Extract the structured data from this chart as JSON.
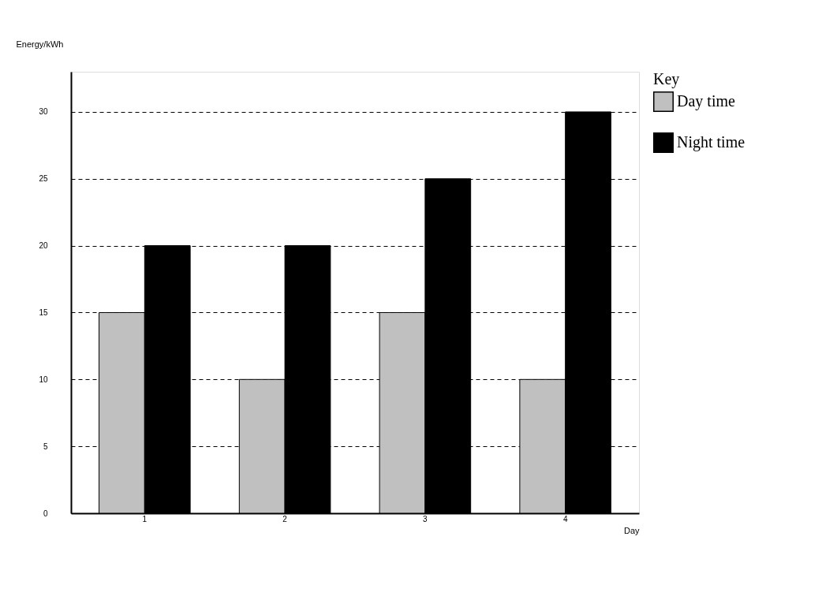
{
  "chart_data": {
    "type": "bar",
    "xlabel": "Day",
    "ylabel": "Energy/kWh",
    "legend_title": "Key",
    "categories": [
      "1",
      "2",
      "3",
      "4"
    ],
    "series": [
      {
        "name": "Day time",
        "color": "#c0c0c0",
        "values": [
          15,
          10,
          15,
          10
        ]
      },
      {
        "name": "Night time",
        "color": "#000000",
        "values": [
          20,
          20,
          25,
          30
        ]
      }
    ],
    "ylim": [
      0,
      33
    ],
    "yticks": [
      0,
      5,
      10,
      15,
      20,
      25,
      30
    ],
    "grid": "y",
    "legend": "right"
  }
}
